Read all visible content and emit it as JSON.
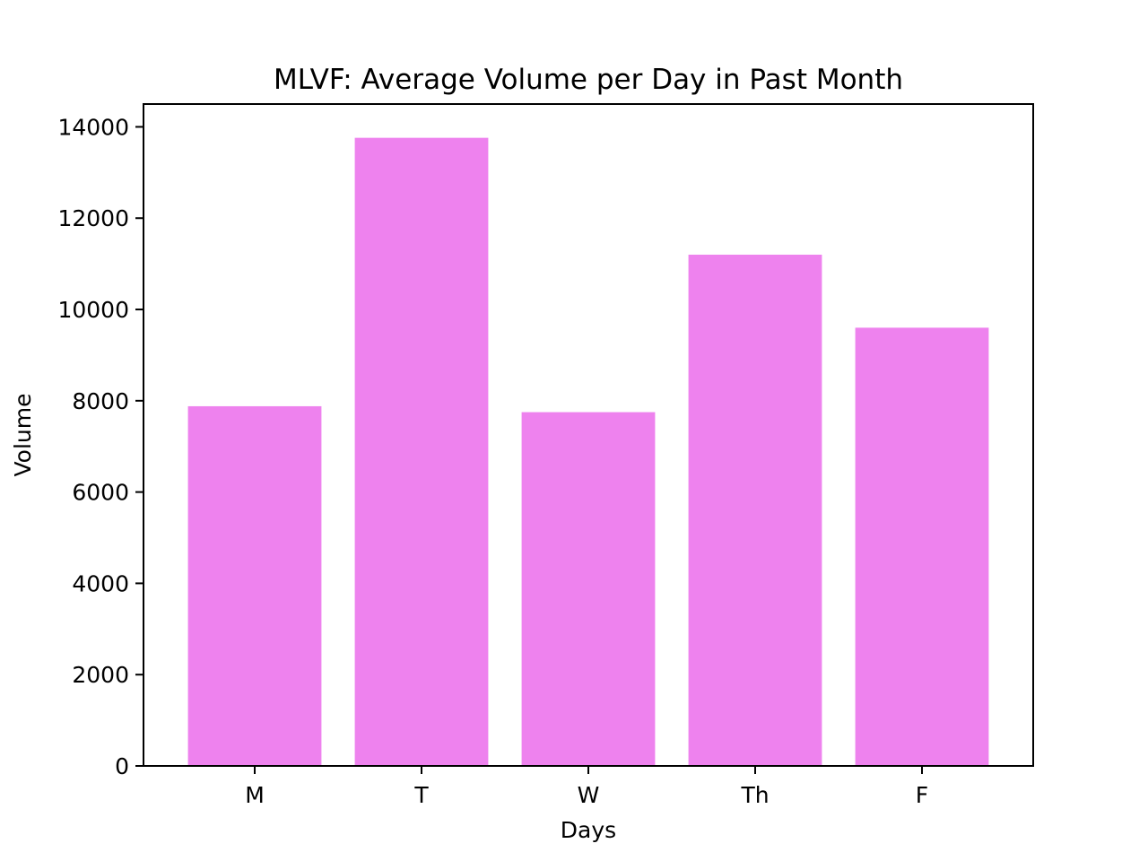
{
  "chart_data": {
    "type": "bar",
    "title": "MLVF: Average Volume per Day in Past Month",
    "xlabel": "Days",
    "ylabel": "Volume",
    "categories": [
      "M",
      "T",
      "W",
      "Th",
      "F"
    ],
    "values": [
      7880,
      13760,
      7750,
      11200,
      9600
    ],
    "ylim": [
      0,
      14500
    ],
    "yticks": [
      0,
      2000,
      4000,
      6000,
      8000,
      10000,
      12000,
      14000
    ],
    "bar_color": "#ee82ee",
    "grid": false,
    "legend": "none"
  }
}
